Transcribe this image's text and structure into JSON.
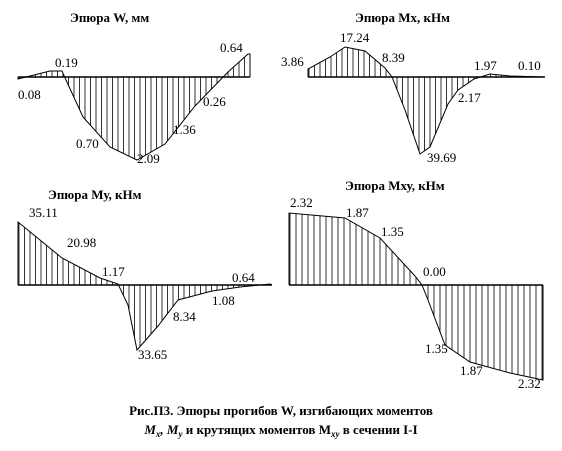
{
  "diagrams": [
    {
      "id": "w",
      "title": "Эпюра W, мм",
      "labels": [
        "0.08",
        "0.19",
        "0.70",
        "2.09",
        "1.36",
        "0.26",
        "0.64"
      ]
    },
    {
      "id": "mx",
      "title": "Эпюра Мх, кНм",
      "labels": [
        "3.86",
        "17.24",
        "8.39",
        "39.69",
        "2.17",
        "1.97",
        "0.10"
      ]
    },
    {
      "id": "my",
      "title": "Эпюра Му, кНм",
      "labels": [
        "35.11",
        "20.98",
        "1.17",
        "33.65",
        "8.34",
        "1.08",
        "0.64"
      ]
    },
    {
      "id": "mxy",
      "title": "Эпюра Мху, кНм",
      "labels": [
        "2.32",
        "1.87",
        "1.35",
        "0.00",
        "1.35",
        "1.87",
        "2.32"
      ]
    }
  ],
  "caption": {
    "line1": "Рис.П3. Эпюры прогибов W, изгибающих моментов",
    "line2_parts": [
      "M",
      "x",
      ", M",
      "y",
      " и крутящих  моментов M",
      "xy",
      " в сечении I-I"
    ]
  }
}
